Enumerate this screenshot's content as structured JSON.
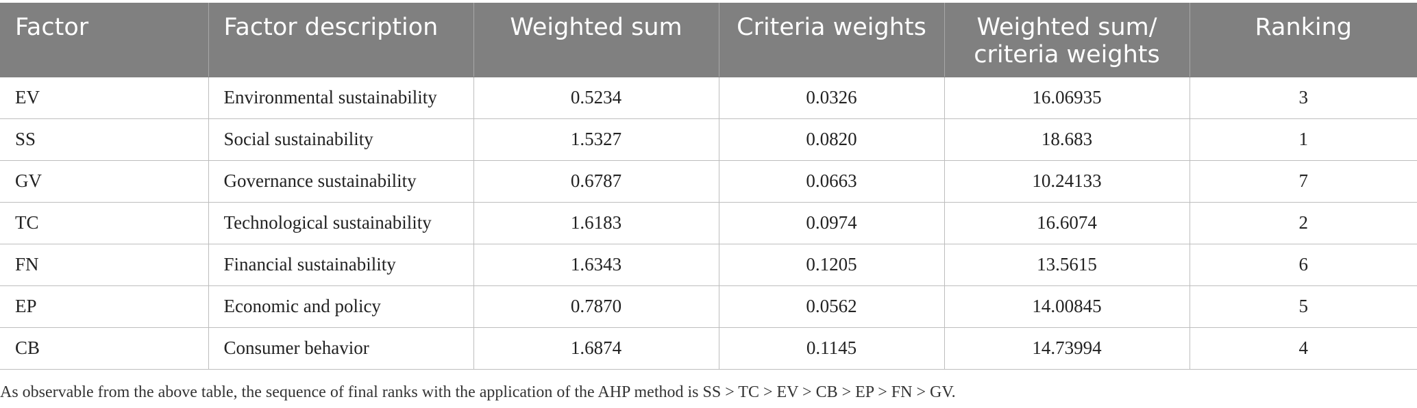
{
  "table": {
    "headers": [
      "Factor",
      "Factor description",
      "Weighted sum",
      "Criteria weights",
      "Weighted sum/ criteria weights",
      "Ranking"
    ],
    "rows": [
      [
        "EV",
        "Environmental sustainability",
        "0.5234",
        "0.0326",
        "16.06935",
        "3"
      ],
      [
        "SS",
        "Social sustainability",
        "1.5327",
        "0.0820",
        "18.683",
        "1"
      ],
      [
        "GV",
        "Governance sustainability",
        "0.6787",
        "0.0663",
        "10.24133",
        "7"
      ],
      [
        "TC",
        "Technological sustainability",
        "1.6183",
        "0.0974",
        "16.6074",
        "2"
      ],
      [
        "FN",
        "Financial sustainability",
        "1.6343",
        "0.1205",
        "13.5615",
        "6"
      ],
      [
        "EP",
        "Economic and policy",
        "0.7870",
        "0.0562",
        "14.00845",
        "5"
      ],
      [
        "CB",
        "Consumer behavior",
        "1.6874",
        "0.1145",
        "14.73994",
        "4"
      ]
    ]
  },
  "footnote": "As observable from the above table, the sequence of final ranks with the application of the AHP method is SS > TC > EV > CB > EP > FN > GV.",
  "colors": {
    "header_background": "#808080",
    "header_text": "#ffffff",
    "grid_line": "#bdbdbd"
  }
}
